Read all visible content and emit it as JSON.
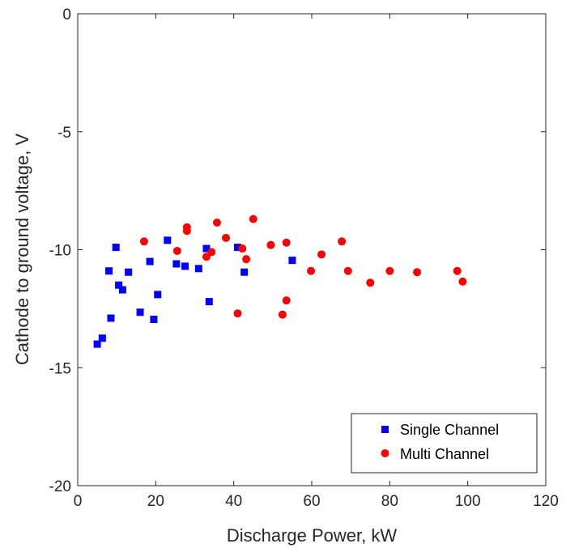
{
  "chart_data": {
    "type": "scatter",
    "xlabel": "Discharge Power, kW",
    "ylabel": "Cathode to ground voltage, V",
    "xlim": [
      0,
      120
    ],
    "ylim": [
      -20,
      0
    ],
    "xticks": [
      0,
      20,
      40,
      60,
      80,
      100,
      120
    ],
    "yticks": [
      0,
      -5,
      -10,
      -15,
      -20
    ],
    "xtick_labels": [
      "0",
      "20",
      "40",
      "60",
      "80",
      "100",
      "120"
    ],
    "ytick_labels": [
      "0",
      "-5",
      "-10",
      "-15",
      "-20"
    ],
    "legend_position": "bottom-right",
    "grid": false,
    "series": [
      {
        "name": "Single Channel",
        "marker": "square",
        "color": "#0000ff",
        "points": [
          [
            5.0,
            -14.0
          ],
          [
            6.3,
            -13.75
          ],
          [
            8.0,
            -10.9
          ],
          [
            8.5,
            -12.9
          ],
          [
            9.8,
            -9.9
          ],
          [
            10.5,
            -11.5
          ],
          [
            11.5,
            -11.7
          ],
          [
            13.0,
            -10.95
          ],
          [
            16.0,
            -12.65
          ],
          [
            18.5,
            -10.5
          ],
          [
            19.5,
            -12.95
          ],
          [
            20.5,
            -11.9
          ],
          [
            23.0,
            -9.6
          ],
          [
            25.3,
            -10.6
          ],
          [
            27.5,
            -10.7
          ],
          [
            31.0,
            -10.8
          ],
          [
            33.0,
            -9.95
          ],
          [
            33.7,
            -12.2
          ],
          [
            41.0,
            -9.9
          ],
          [
            42.7,
            -10.95
          ],
          [
            55.0,
            -10.45
          ]
        ]
      },
      {
        "name": "Multi Channel",
        "marker": "circle",
        "color": "#ff0000",
        "points": [
          [
            17.0,
            -9.65
          ],
          [
            25.5,
            -10.05
          ],
          [
            28.0,
            -9.05
          ],
          [
            28.0,
            -9.2
          ],
          [
            33.0,
            -10.3
          ],
          [
            34.3,
            -10.1
          ],
          [
            35.7,
            -8.85
          ],
          [
            38.0,
            -9.5
          ],
          [
            41.0,
            -12.7
          ],
          [
            42.2,
            -9.95
          ],
          [
            43.2,
            -10.4
          ],
          [
            45.0,
            -8.7
          ],
          [
            49.5,
            -9.8
          ],
          [
            52.5,
            -12.75
          ],
          [
            53.5,
            -9.7
          ],
          [
            53.5,
            -12.15
          ],
          [
            59.8,
            -10.9
          ],
          [
            62.5,
            -10.2
          ],
          [
            67.7,
            -9.65
          ],
          [
            69.3,
            -10.9
          ],
          [
            75.0,
            -11.4
          ],
          [
            80.0,
            -10.9
          ],
          [
            87.0,
            -10.95
          ],
          [
            97.3,
            -10.9
          ],
          [
            98.7,
            -11.35
          ]
        ]
      }
    ]
  }
}
